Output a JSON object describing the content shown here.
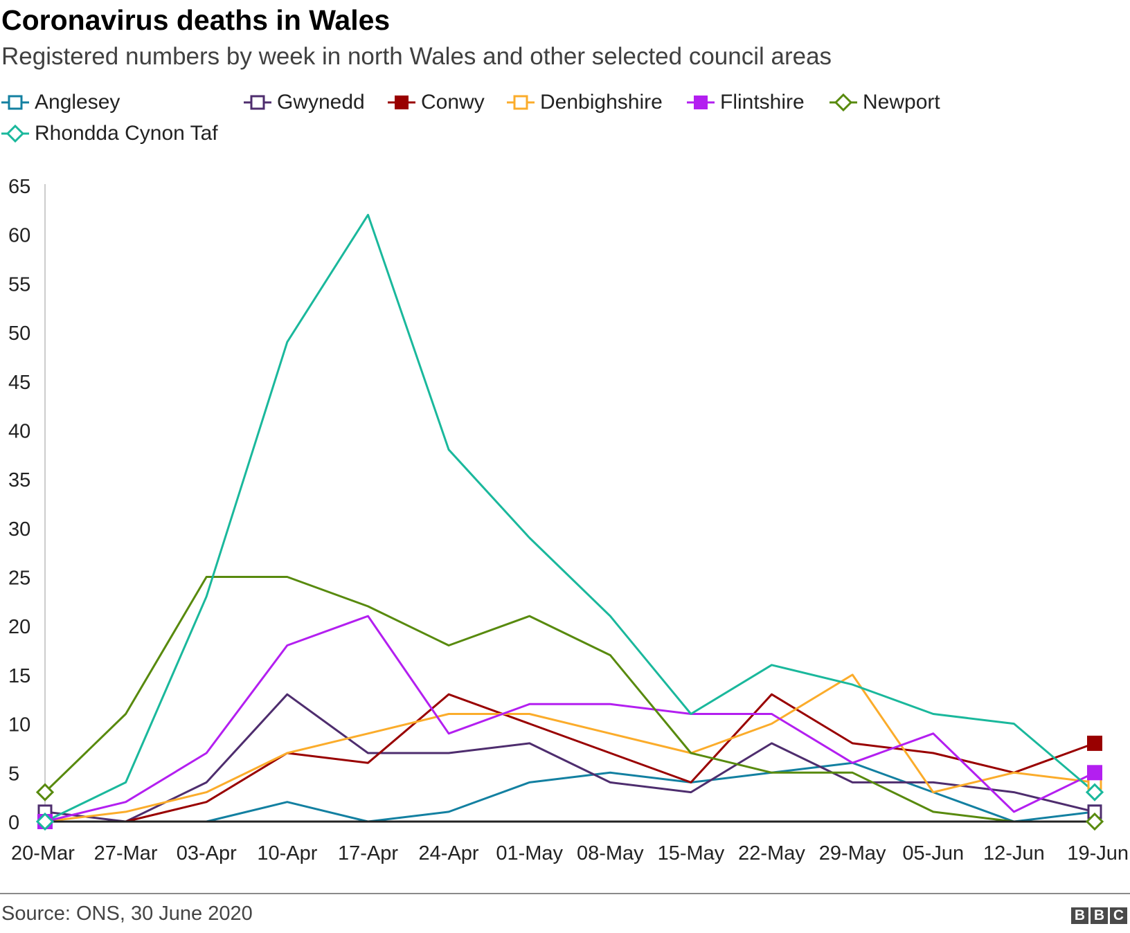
{
  "header": {
    "title": "Coronavirus deaths in Wales",
    "subtitle": "Registered numbers by week in north Wales and other selected council areas"
  },
  "footer": {
    "source": "Source: ONS, 30 June 2020",
    "logo_letters": [
      "B",
      "B",
      "C"
    ]
  },
  "chart_data": {
    "type": "line",
    "title": "Coronavirus deaths in Wales",
    "subtitle": "Registered numbers by week in north Wales and other selected council areas",
    "xlabel": "",
    "ylabel": "",
    "x": [
      "20-Mar",
      "27-Mar",
      "03-Apr",
      "10-Apr",
      "17-Apr",
      "24-Apr",
      "01-May",
      "08-May",
      "15-May",
      "22-May",
      "29-May",
      "05-Jun",
      "12-Jun",
      "19-Jun"
    ],
    "yticks": [
      0,
      5,
      10,
      15,
      20,
      25,
      30,
      35,
      40,
      45,
      50,
      55,
      60,
      65
    ],
    "ylim": [
      0,
      65
    ],
    "grid": false,
    "legend_position": "top",
    "series": [
      {
        "name": "Anglesey",
        "color": "#1380a1",
        "marker": "square-open",
        "values": [
          0,
          0,
          0,
          2,
          0,
          1,
          4,
          5,
          4,
          5,
          6,
          3,
          0,
          1
        ]
      },
      {
        "name": "Gwynedd",
        "color": "#4e2d6e",
        "marker": "square-open",
        "values": [
          1,
          0,
          4,
          13,
          7,
          7,
          8,
          4,
          3,
          8,
          4,
          4,
          3,
          1
        ]
      },
      {
        "name": "Conwy",
        "color": "#990000",
        "marker": "square-filled",
        "values": [
          0,
          0,
          2,
          7,
          6,
          13,
          10,
          7,
          4,
          13,
          8,
          7,
          5,
          8
        ]
      },
      {
        "name": "Denbighshire",
        "color": "#fbac2b",
        "marker": "square-open",
        "values": [
          0,
          1,
          3,
          7,
          9,
          11,
          11,
          9,
          7,
          10,
          15,
          3,
          5,
          4
        ]
      },
      {
        "name": "Flintshire",
        "color": "#b31ff0",
        "marker": "square-filled",
        "values": [
          0,
          2,
          7,
          18,
          21,
          9,
          12,
          12,
          11,
          11,
          6,
          9,
          1,
          5
        ]
      },
      {
        "name": "Newport",
        "color": "#588a0e",
        "marker": "diamond-open",
        "values": [
          3,
          11,
          25,
          25,
          22,
          18,
          21,
          17,
          7,
          5,
          5,
          1,
          0,
          0
        ]
      },
      {
        "name": "Rhondda Cynon Taf",
        "color": "#1ab89c",
        "marker": "diamond-open",
        "values": [
          0,
          4,
          23,
          49,
          62,
          38,
          29,
          21,
          11,
          16,
          14,
          11,
          10,
          3
        ]
      }
    ]
  }
}
